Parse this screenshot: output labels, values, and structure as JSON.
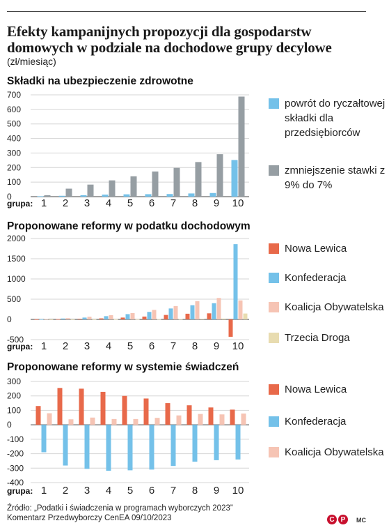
{
  "header": {
    "title": "Efekty kampanijnych propozycji dla gospodarstw domowych w podziale na dochodowe grupy decylowe",
    "subtitle": "(zł/miesiąc)"
  },
  "footer": {
    "source": "Źródło: „Podatki i świadczenia w programach wyborczych 2023”",
    "source2": "Komentarz Przedwyborczy CenEA 09/10/2023",
    "logo_letters": [
      "C",
      "P"
    ],
    "initials": "MC"
  },
  "colors": {
    "red": "#e8694a",
    "blue": "#74c1e9",
    "pink": "#f6c4b4",
    "beige": "#e8dcb0",
    "gray": "#969ea3"
  },
  "chart_data": [
    {
      "type": "bar",
      "title": "Składki na ubezpieczenie zdrowotne",
      "category_label": "grupa:",
      "categories": [
        "1",
        "2",
        "3",
        "4",
        "5",
        "6",
        "7",
        "8",
        "9",
        "10"
      ],
      "ylim": [
        0,
        700
      ],
      "yticks": [
        0,
        100,
        200,
        300,
        400,
        500,
        600,
        700
      ],
      "grid": true,
      "legend_position": "right",
      "series": [
        {
          "name": "powrót do ryczałtowej składki dla przedsiębiorców",
          "color": "#74c1e9",
          "values": [
            3,
            6,
            10,
            14,
            16,
            17,
            18,
            22,
            25,
            252
          ]
        },
        {
          "name": "zmniejszenie stawki z 9% do 7%",
          "color": "#969ea3",
          "values": [
            10,
            55,
            83,
            112,
            140,
            173,
            198,
            238,
            292,
            688
          ]
        }
      ]
    },
    {
      "type": "bar",
      "title": "Proponowane reformy w podatku dochodowym",
      "category_label": "grupa:",
      "categories": [
        "1",
        "2",
        "3",
        "4",
        "5",
        "6",
        "7",
        "8",
        "9",
        "10"
      ],
      "ylim": [
        -500,
        2000
      ],
      "yticks": [
        -500,
        0,
        500,
        1000,
        1500,
        2000
      ],
      "grid": true,
      "legend_position": "right",
      "series": [
        {
          "name": "Nowa Lewica",
          "color": "#e8694a",
          "values": [
            3,
            8,
            15,
            25,
            45,
            70,
            110,
            140,
            150,
            -430
          ]
        },
        {
          "name": "Konfederacja",
          "color": "#74c1e9",
          "values": [
            5,
            22,
            45,
            80,
            130,
            185,
            270,
            350,
            400,
            1860
          ]
        },
        {
          "name": "Koalicja Obywatelska",
          "color": "#f6c4b4",
          "values": [
            10,
            30,
            65,
            105,
            155,
            235,
            330,
            450,
            530,
            470
          ]
        },
        {
          "name": "Trzecia Droga",
          "color": "#e8dcb0",
          "values": [
            1,
            2,
            3,
            5,
            6,
            8,
            10,
            15,
            20,
            145
          ]
        }
      ]
    },
    {
      "type": "bar",
      "title": "Proponowane reformy w systemie świadczeń",
      "category_label": "grupa:",
      "categories": [
        "1",
        "2",
        "3",
        "4",
        "5",
        "6",
        "7",
        "8",
        "9",
        "10"
      ],
      "ylim": [
        -400,
        300
      ],
      "yticks": [
        -400,
        -300,
        -200,
        -100,
        0,
        100,
        200,
        300
      ],
      "grid": true,
      "legend_position": "right",
      "series": [
        {
          "name": "Nowa Lewica",
          "color": "#e8694a",
          "values": [
            130,
            255,
            250,
            228,
            200,
            182,
            150,
            135,
            120,
            105
          ]
        },
        {
          "name": "Konfederacja",
          "color": "#74c1e9",
          "values": [
            -190,
            -282,
            -305,
            -318,
            -315,
            -310,
            -285,
            -255,
            -245,
            -240
          ]
        },
        {
          "name": "Koalicja Obywatelska",
          "color": "#f6c4b4",
          "values": [
            80,
            38,
            50,
            40,
            40,
            48,
            65,
            75,
            72,
            78
          ]
        }
      ]
    }
  ]
}
